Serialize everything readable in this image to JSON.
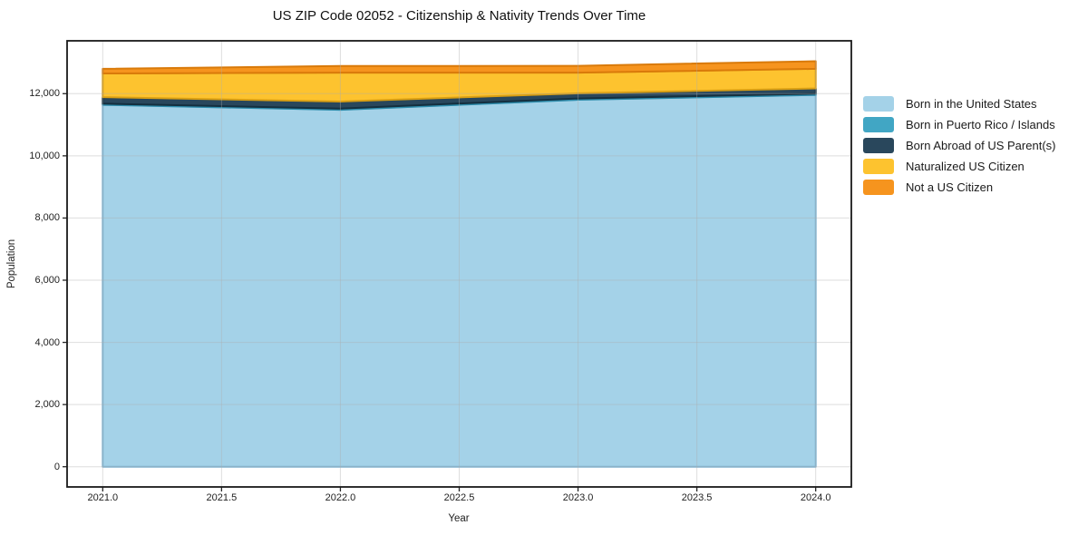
{
  "chart_data": {
    "type": "area",
    "stacked": true,
    "title": "US ZIP Code 02052 - Citizenship & Nativity Trends Over Time",
    "xlabel": "Year",
    "ylabel": "Population",
    "x": [
      2021,
      2022,
      2023,
      2024
    ],
    "series": [
      {
        "name": "Born in the United States",
        "color": "#a4d2e8",
        "edge": "#7fb6d4",
        "values": [
          11640,
          11480,
          11805,
          11960
        ]
      },
      {
        "name": "Born in Puerto Rico / Islands",
        "color": "#41a6c4",
        "edge": "#2d8cab",
        "values": [
          40,
          40,
          40,
          40
        ]
      },
      {
        "name": "Born Abroad of US Parent(s)",
        "color": "#29475c",
        "edge": "#142f3f",
        "values": [
          210,
          225,
          165,
          170
        ]
      },
      {
        "name": "Naturalized US Citizen",
        "color": "#fdc32f",
        "edge": "#d99f14",
        "values": [
          760,
          930,
          665,
          630
        ]
      },
      {
        "name": "Not a US Citizen",
        "color": "#f6941e",
        "edge": "#d97a0a",
        "values": [
          150,
          215,
          220,
          245
        ]
      }
    ],
    "xticks": [
      "2021.0",
      "2021.5",
      "2022.0",
      "2022.5",
      "2023.0",
      "2023.5",
      "2024.0"
    ],
    "xtick_values": [
      2021,
      2021.5,
      2022,
      2022.5,
      2023,
      2023.5,
      2024
    ],
    "yticks": [
      "0",
      "2,000",
      "4,000",
      "6,000",
      "8,000",
      "10,000",
      "12,000"
    ],
    "ytick_values": [
      0,
      2000,
      4000,
      6000,
      8000,
      10000,
      12000
    ],
    "xlim": [
      2020.85,
      2024.15
    ],
    "ylim": [
      -650,
      13700
    ],
    "grid": true,
    "legend_position": "right",
    "frame_color": "#1a1a1a",
    "grid_color": "rgba(173,173,173,0.4)"
  }
}
